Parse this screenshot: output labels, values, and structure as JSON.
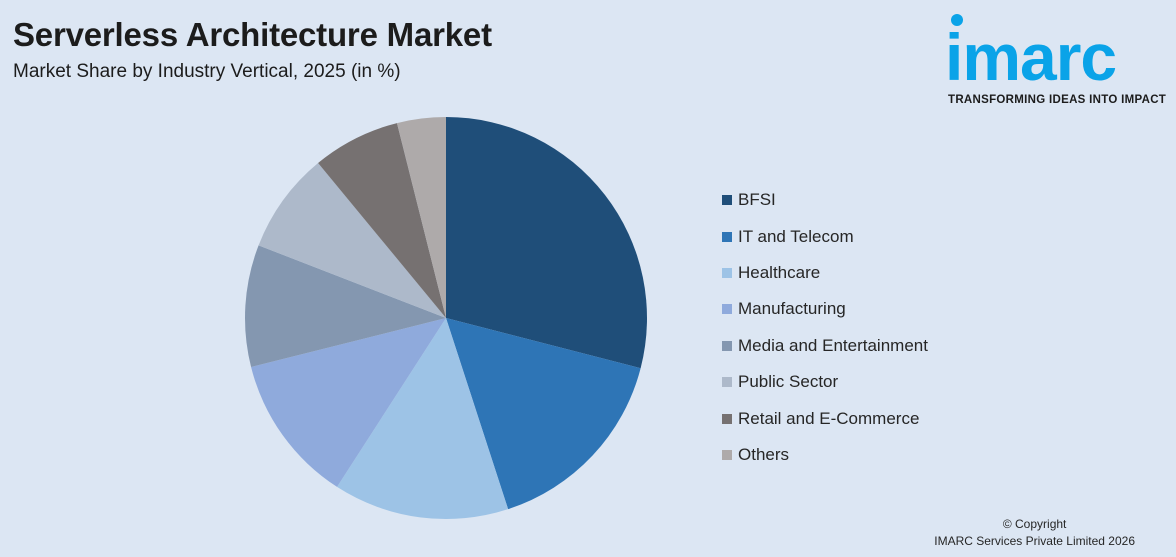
{
  "header": {
    "title": "Serverless Architecture Market",
    "subtitle": "Market Share by Industry Vertical, 2025 (in %)"
  },
  "logo": {
    "wordmark": "imarc",
    "tagline": "TRANSFORMING IDEAS INTO IMPACT",
    "color": "#0aa3e8"
  },
  "chart_data": {
    "type": "pie",
    "start_angle_deg": 0,
    "direction": "clockwise",
    "legend_position": "right",
    "categories": [
      "BFSI",
      "IT and Telecom",
      "Healthcare",
      "Manufacturing",
      "Media and Entertainment",
      "Public Sector",
      "Retail and E-Commerce",
      "Others"
    ],
    "values": [
      29.6,
      16.3,
      14.4,
      12.2,
      10.0,
      8.3,
      7.2,
      4.0
    ],
    "colors": [
      "#1f4e79",
      "#2e75b6",
      "#9dc3e6",
      "#8faadc",
      "#8497b0",
      "#adb9ca",
      "#767171",
      "#aeaaaa"
    ]
  },
  "footer": {
    "copyright_line1": "© Copyright",
    "copyright_line2": "IMARC Services Private Limited 2026"
  }
}
